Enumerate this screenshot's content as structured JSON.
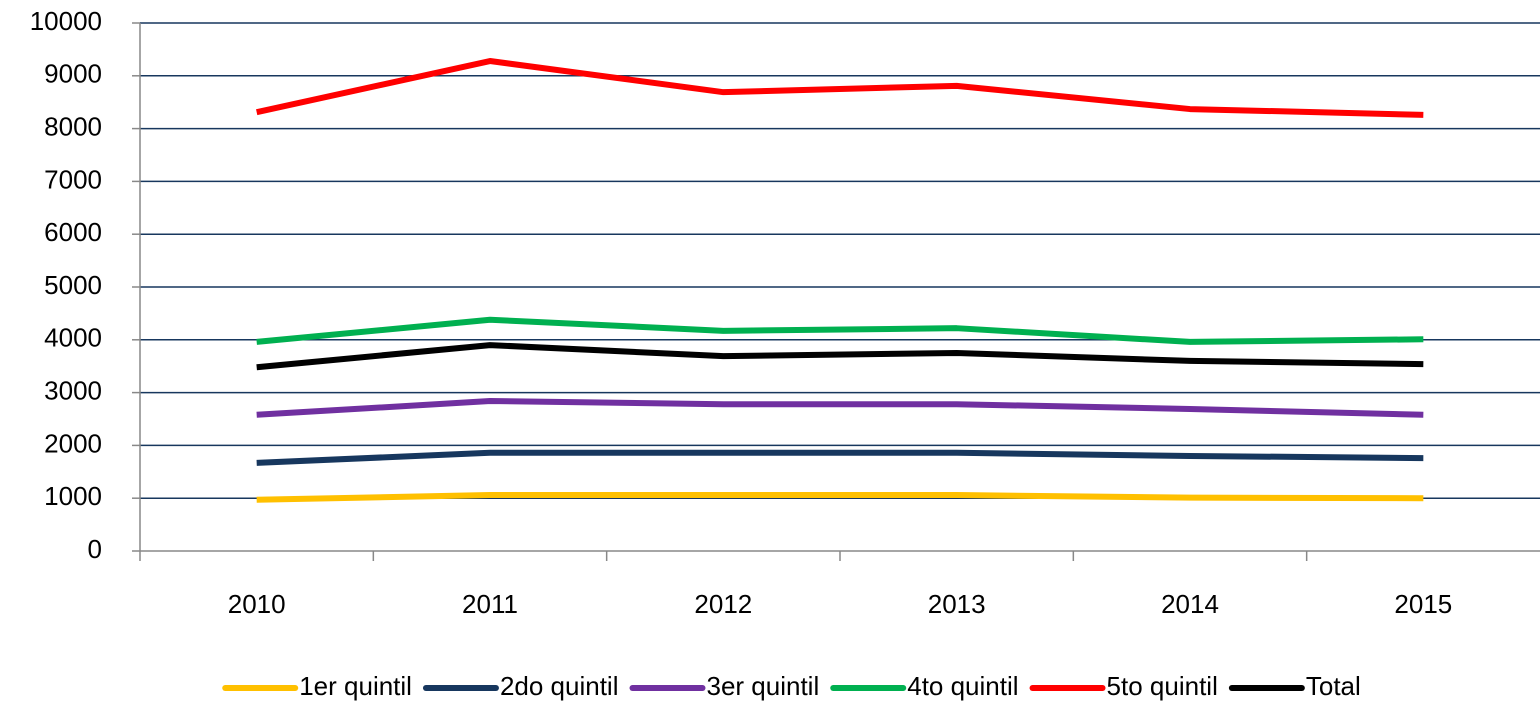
{
  "chart_data": {
    "type": "line",
    "categories": [
      "2010",
      "2011",
      "2012",
      "2013",
      "2014",
      "2015"
    ],
    "series": [
      {
        "name": "1er quintil",
        "color": "#ffc000",
        "values": [
          970,
          1060,
          1060,
          1060,
          1010,
          1000
        ]
      },
      {
        "name": "2do quintil",
        "color": "#17375e",
        "values": [
          1670,
          1860,
          1860,
          1860,
          1800,
          1760
        ]
      },
      {
        "name": "3er quintil",
        "color": "#7030a0",
        "values": [
          2580,
          2840,
          2780,
          2780,
          2690,
          2580
        ]
      },
      {
        "name": "4to quintil",
        "color": "#00b050",
        "values": [
          3960,
          4380,
          4170,
          4220,
          3960,
          4010
        ]
      },
      {
        "name": "5to quintil",
        "color": "#ff0000",
        "values": [
          8310,
          9280,
          8690,
          8810,
          8370,
          8260
        ]
      },
      {
        "name": "Total",
        "color": "#000000",
        "values": [
          3480,
          3900,
          3690,
          3750,
          3600,
          3540
        ]
      }
    ],
    "ylim": [
      0,
      10000
    ],
    "yticks": [
      0,
      1000,
      2000,
      3000,
      4000,
      5000,
      6000,
      7000,
      8000,
      9000,
      10000
    ],
    "grid": true,
    "legend": "bottom"
  }
}
